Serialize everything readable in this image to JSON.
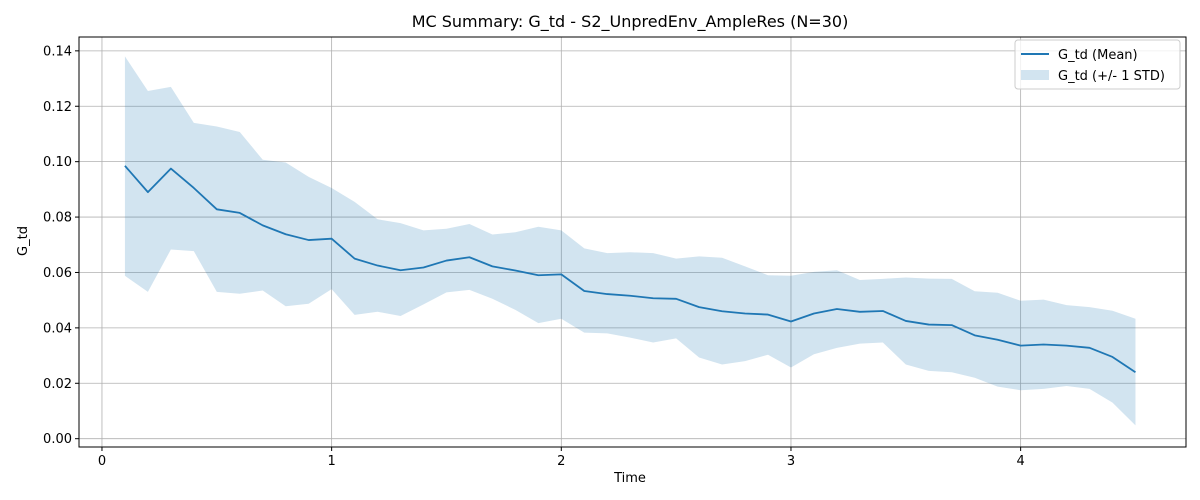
{
  "chart_data": {
    "type": "line",
    "title": "MC Summary: G_td - S2_UnpredEnv_AmpleRes (N=30)",
    "xlabel": "Time",
    "ylabel": "G_td",
    "xlim": [
      -0.1,
      4.72
    ],
    "ylim": [
      -0.003,
      0.145
    ],
    "xticks": [
      0,
      1,
      2,
      3,
      4
    ],
    "yticks": [
      0.0,
      0.02,
      0.04,
      0.06,
      0.08,
      0.1,
      0.12,
      0.14
    ],
    "grid": true,
    "legend_position": "top-right",
    "colors": {
      "mean": "#1f77b4",
      "band": "#1f77b4"
    },
    "x": [
      0.1,
      0.2,
      0.3,
      0.4,
      0.5,
      0.6,
      0.7,
      0.8,
      0.9,
      1.0,
      1.1,
      1.2,
      1.3,
      1.4,
      1.5,
      1.6,
      1.7,
      1.8,
      1.9,
      2.0,
      2.1,
      2.2,
      2.3,
      2.4,
      2.5,
      2.6,
      2.7,
      2.8,
      2.9,
      3.0,
      3.1,
      3.2,
      3.3,
      3.4,
      3.5,
      3.6,
      3.7,
      3.8,
      3.9,
      4.0,
      4.1,
      4.2,
      4.3,
      4.4,
      4.5
    ],
    "series": [
      {
        "name": "G_td (Mean)",
        "type": "line",
        "values": [
          0.0985,
          0.089,
          0.0975,
          0.0905,
          0.0828,
          0.0815,
          0.077,
          0.0738,
          0.0717,
          0.0722,
          0.065,
          0.0625,
          0.0608,
          0.0618,
          0.0643,
          0.0655,
          0.0622,
          0.0607,
          0.059,
          0.0593,
          0.0533,
          0.0522,
          0.0516,
          0.0507,
          0.0505,
          0.0475,
          0.046,
          0.0452,
          0.0448,
          0.0423,
          0.0452,
          0.0468,
          0.0458,
          0.0461,
          0.0425,
          0.0412,
          0.041,
          0.0373,
          0.0357,
          0.0336,
          0.034,
          0.0336,
          0.0328,
          0.0295,
          0.024
        ]
      },
      {
        "name": "G_td (+/- 1 STD)",
        "type": "band",
        "upper": [
          0.138,
          0.1255,
          0.127,
          0.114,
          0.1127,
          0.1107,
          0.1007,
          0.0997,
          0.0945,
          0.0905,
          0.0855,
          0.0792,
          0.0778,
          0.0752,
          0.0758,
          0.0775,
          0.0737,
          0.0745,
          0.0765,
          0.0752,
          0.0687,
          0.067,
          0.0673,
          0.067,
          0.065,
          0.0658,
          0.0653,
          0.0622,
          0.059,
          0.0588,
          0.0602,
          0.0608,
          0.0573,
          0.0577,
          0.0582,
          0.0578,
          0.0577,
          0.0532,
          0.0527,
          0.0498,
          0.0502,
          0.0482,
          0.0475,
          0.0462,
          0.0433
        ],
        "lower": [
          0.0588,
          0.053,
          0.0683,
          0.0677,
          0.053,
          0.0523,
          0.0535,
          0.0478,
          0.0487,
          0.054,
          0.0447,
          0.0458,
          0.0443,
          0.0485,
          0.0528,
          0.0537,
          0.0505,
          0.0465,
          0.0417,
          0.0433,
          0.0383,
          0.038,
          0.0365,
          0.0347,
          0.0362,
          0.0293,
          0.0268,
          0.028,
          0.0303,
          0.0257,
          0.0305,
          0.0328,
          0.0343,
          0.0347,
          0.0268,
          0.0245,
          0.024,
          0.022,
          0.0188,
          0.0175,
          0.018,
          0.019,
          0.018,
          0.013,
          0.0048
        ]
      }
    ]
  }
}
